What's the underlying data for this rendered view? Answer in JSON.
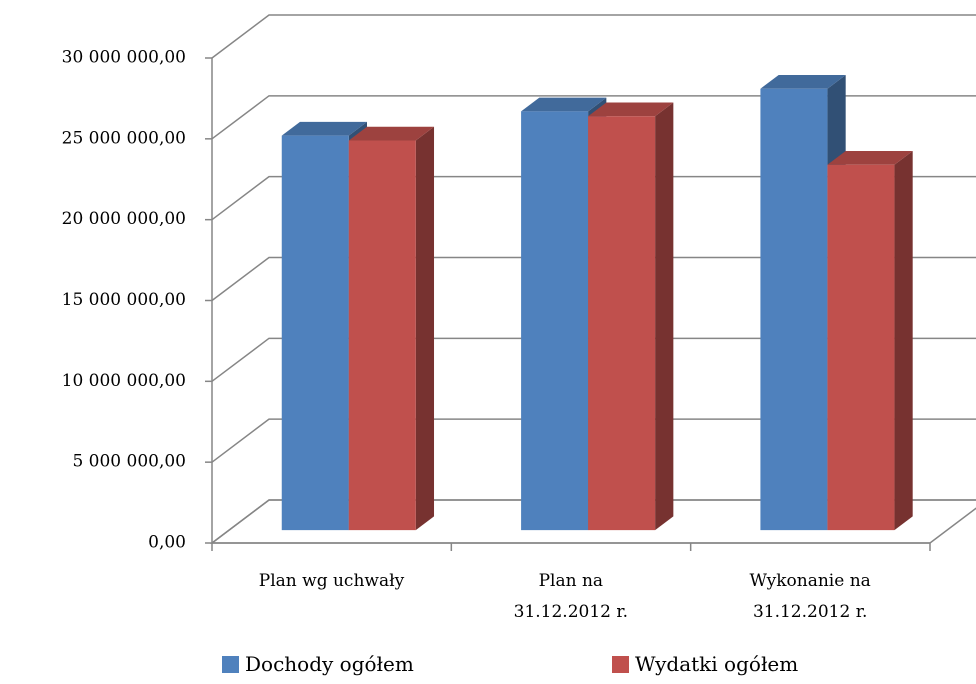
{
  "chart_data": {
    "type": "bar3d",
    "categories": [
      "Plan wg uchwały",
      "Plan na\n31.12.2012 r.",
      "Wykonanie na\n31.12.2012 r."
    ],
    "series": [
      {
        "name": "Dochody ogółem",
        "color": "#4f81bd",
        "values": [
          24400000,
          25900000,
          27300000
        ]
      },
      {
        "name": "Wydatki ogółem",
        "color": "#c0504d",
        "values": [
          24100000,
          25600000,
          22600000
        ]
      }
    ],
    "ylim": [
      0,
      30000000
    ],
    "yticks": [
      {
        "value": 0,
        "label": "0,00"
      },
      {
        "value": 5000000,
        "label": "5 000 000,00"
      },
      {
        "value": 10000000,
        "label": "10 000 000,00"
      },
      {
        "value": 15000000,
        "label": "15 000 000,00"
      },
      {
        "value": 20000000,
        "label": "20 000 000,00"
      },
      {
        "value": 25000000,
        "label": "25 000 000,00"
      },
      {
        "value": 30000000,
        "label": "30 000 000,00"
      }
    ],
    "grid": true,
    "legend": "bottom"
  }
}
